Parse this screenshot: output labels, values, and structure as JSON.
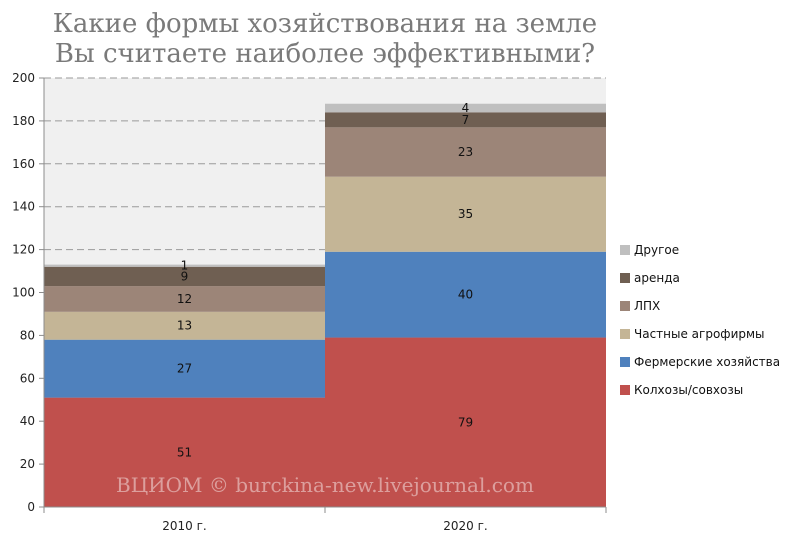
{
  "chart_data": {
    "type": "bar",
    "stacked": true,
    "title_lines": [
      "Какие формы хозяйствования на земле",
      "Вы считаете наиболее эффективными?"
    ],
    "categories": [
      "2010 г.",
      "2020 г."
    ],
    "series": [
      {
        "name": "Колхозы/совхозы",
        "values": [
          51,
          79
        ],
        "color": "#c0504d"
      },
      {
        "name": "Фермерские хозяйства",
        "values": [
          27,
          40
        ],
        "color": "#4f81bd"
      },
      {
        "name": "Частные агрофирмы",
        "values": [
          13,
          35
        ],
        "color": "#c4b596"
      },
      {
        "name": "ЛПХ",
        "values": [
          12,
          23
        ],
        "color": "#9c8578"
      },
      {
        "name": "аренда",
        "values": [
          9,
          7
        ],
        "color": "#6f5f52"
      },
      {
        "name": "Другое",
        "values": [
          1,
          4
        ],
        "color": "#bfbfbf"
      }
    ],
    "y_ticks": [
      "0",
      "20",
      "40",
      "60",
      "80",
      "100",
      "120",
      "140",
      "160",
      "180",
      "200"
    ],
    "ylim": [
      0,
      200
    ],
    "grid": "dashed horizontal",
    "legend_position": "right",
    "plot_background": "#f0f0f0"
  },
  "watermark": "ВЦИОМ © burckina-new.livejournal.com"
}
